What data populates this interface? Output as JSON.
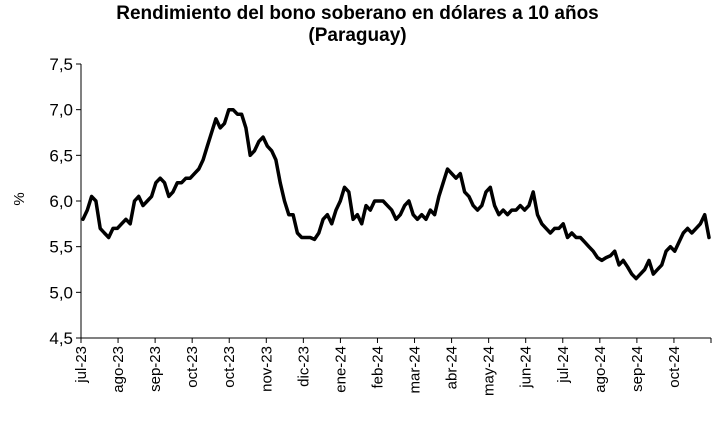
{
  "title_line1": "Rendimiento del bono soberano en dólares a 10 años",
  "title_line2": "(Paraguay)",
  "chart_data": {
    "type": "line",
    "title": "Rendimiento del bono soberano en dólares a 10 años (Paraguay)",
    "xlabel": "",
    "ylabel": "%",
    "ylim": [
      4.5,
      7.5
    ],
    "yticks": [
      "4,5",
      "5,0",
      "5,5",
      "6,0",
      "6,5",
      "7,0",
      "7,5"
    ],
    "ytick_values": [
      4.5,
      5.0,
      5.5,
      6.0,
      6.5,
      7.0,
      7.5
    ],
    "xticks": [
      "jul-23",
      "ago-23",
      "sep-23",
      "oct-23",
      "oct-23",
      "nov-23",
      "dic-23",
      "ene-24",
      "feb-24",
      "mar-24",
      "abr-24",
      "may-24",
      "jun-24",
      "jul-24",
      "ago-24",
      "sep-24",
      "oct-24"
    ],
    "grid": false,
    "legend": "none",
    "color": "#000000",
    "series": [
      {
        "values": [
          5.8,
          5.9,
          6.05,
          6.0,
          5.7,
          5.65,
          5.6,
          5.7,
          5.7,
          5.75,
          5.8,
          5.75,
          6.0,
          6.05,
          5.95,
          6.0,
          6.05,
          6.2,
          6.25,
          6.2,
          6.05,
          6.1,
          6.2,
          6.2,
          6.25,
          6.25,
          6.3,
          6.35,
          6.45,
          6.6,
          6.75,
          6.9,
          6.8,
          6.85,
          7.0,
          7.0,
          6.95,
          6.95,
          6.8,
          6.5,
          6.55,
          6.65,
          6.7,
          6.6,
          6.55,
          6.45,
          6.2,
          6.0,
          5.85,
          5.85,
          5.65,
          5.6,
          5.6,
          5.6,
          5.58,
          5.65,
          5.8,
          5.85,
          5.75,
          5.9,
          6.0,
          6.15,
          6.1,
          5.8,
          5.85,
          5.75,
          5.95,
          5.9,
          6.0,
          6.0,
          6.0,
          5.95,
          5.9,
          5.8,
          5.85,
          5.95,
          6.0,
          5.85,
          5.8,
          5.85,
          5.8,
          5.9,
          5.85,
          6.05,
          6.2,
          6.35,
          6.3,
          6.25,
          6.3,
          6.1,
          6.05,
          5.95,
          5.9,
          5.95,
          6.1,
          6.15,
          5.95,
          5.85,
          5.9,
          5.85,
          5.9,
          5.9,
          5.95,
          5.9,
          5.95,
          6.1,
          5.85,
          5.75,
          5.7,
          5.65,
          5.7,
          5.7,
          5.75,
          5.6,
          5.65,
          5.6,
          5.6,
          5.55,
          5.5,
          5.45,
          5.38,
          5.35,
          5.38,
          5.4,
          5.45,
          5.3,
          5.35,
          5.28,
          5.2,
          5.15,
          5.2,
          5.25,
          5.35,
          5.2,
          5.25,
          5.3,
          5.45,
          5.5,
          5.45,
          5.55,
          5.65,
          5.7,
          5.65,
          5.7,
          5.75,
          5.85,
          5.6
        ]
      }
    ]
  }
}
